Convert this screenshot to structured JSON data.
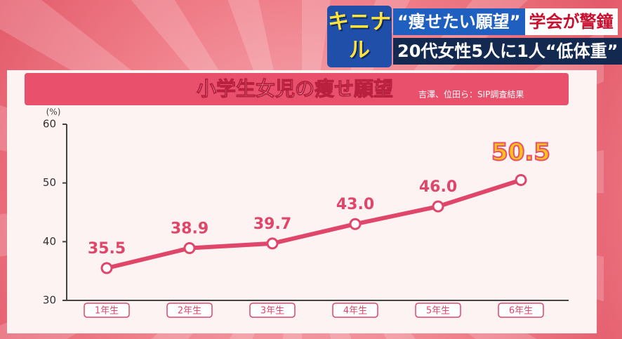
{
  "header": {
    "logo": "キニナル",
    "line1": [
      "“痩せたい願望”",
      "学会が警鐘"
    ],
    "line2": "20代女性5人に1人“低体重”"
  },
  "chart_data": {
    "type": "line",
    "title": "小学生女児の痩せ願望",
    "source": "吉澤、位田ら：SIP調査結果",
    "y_label": "(%)",
    "categories": [
      "1年生",
      "2年生",
      "3年生",
      "4年生",
      "5年生",
      "6年生"
    ],
    "values": [
      35.5,
      38.9,
      39.7,
      43,
      46,
      50.5
    ],
    "value_labels": [
      "35.5",
      "38.9",
      "39.7",
      "43.0",
      "46.0",
      "50.5"
    ],
    "color": "#e0456a",
    "ylim": [
      30,
      60
    ],
    "yticks": [
      30,
      40,
      50,
      60
    ],
    "grid": false
  }
}
